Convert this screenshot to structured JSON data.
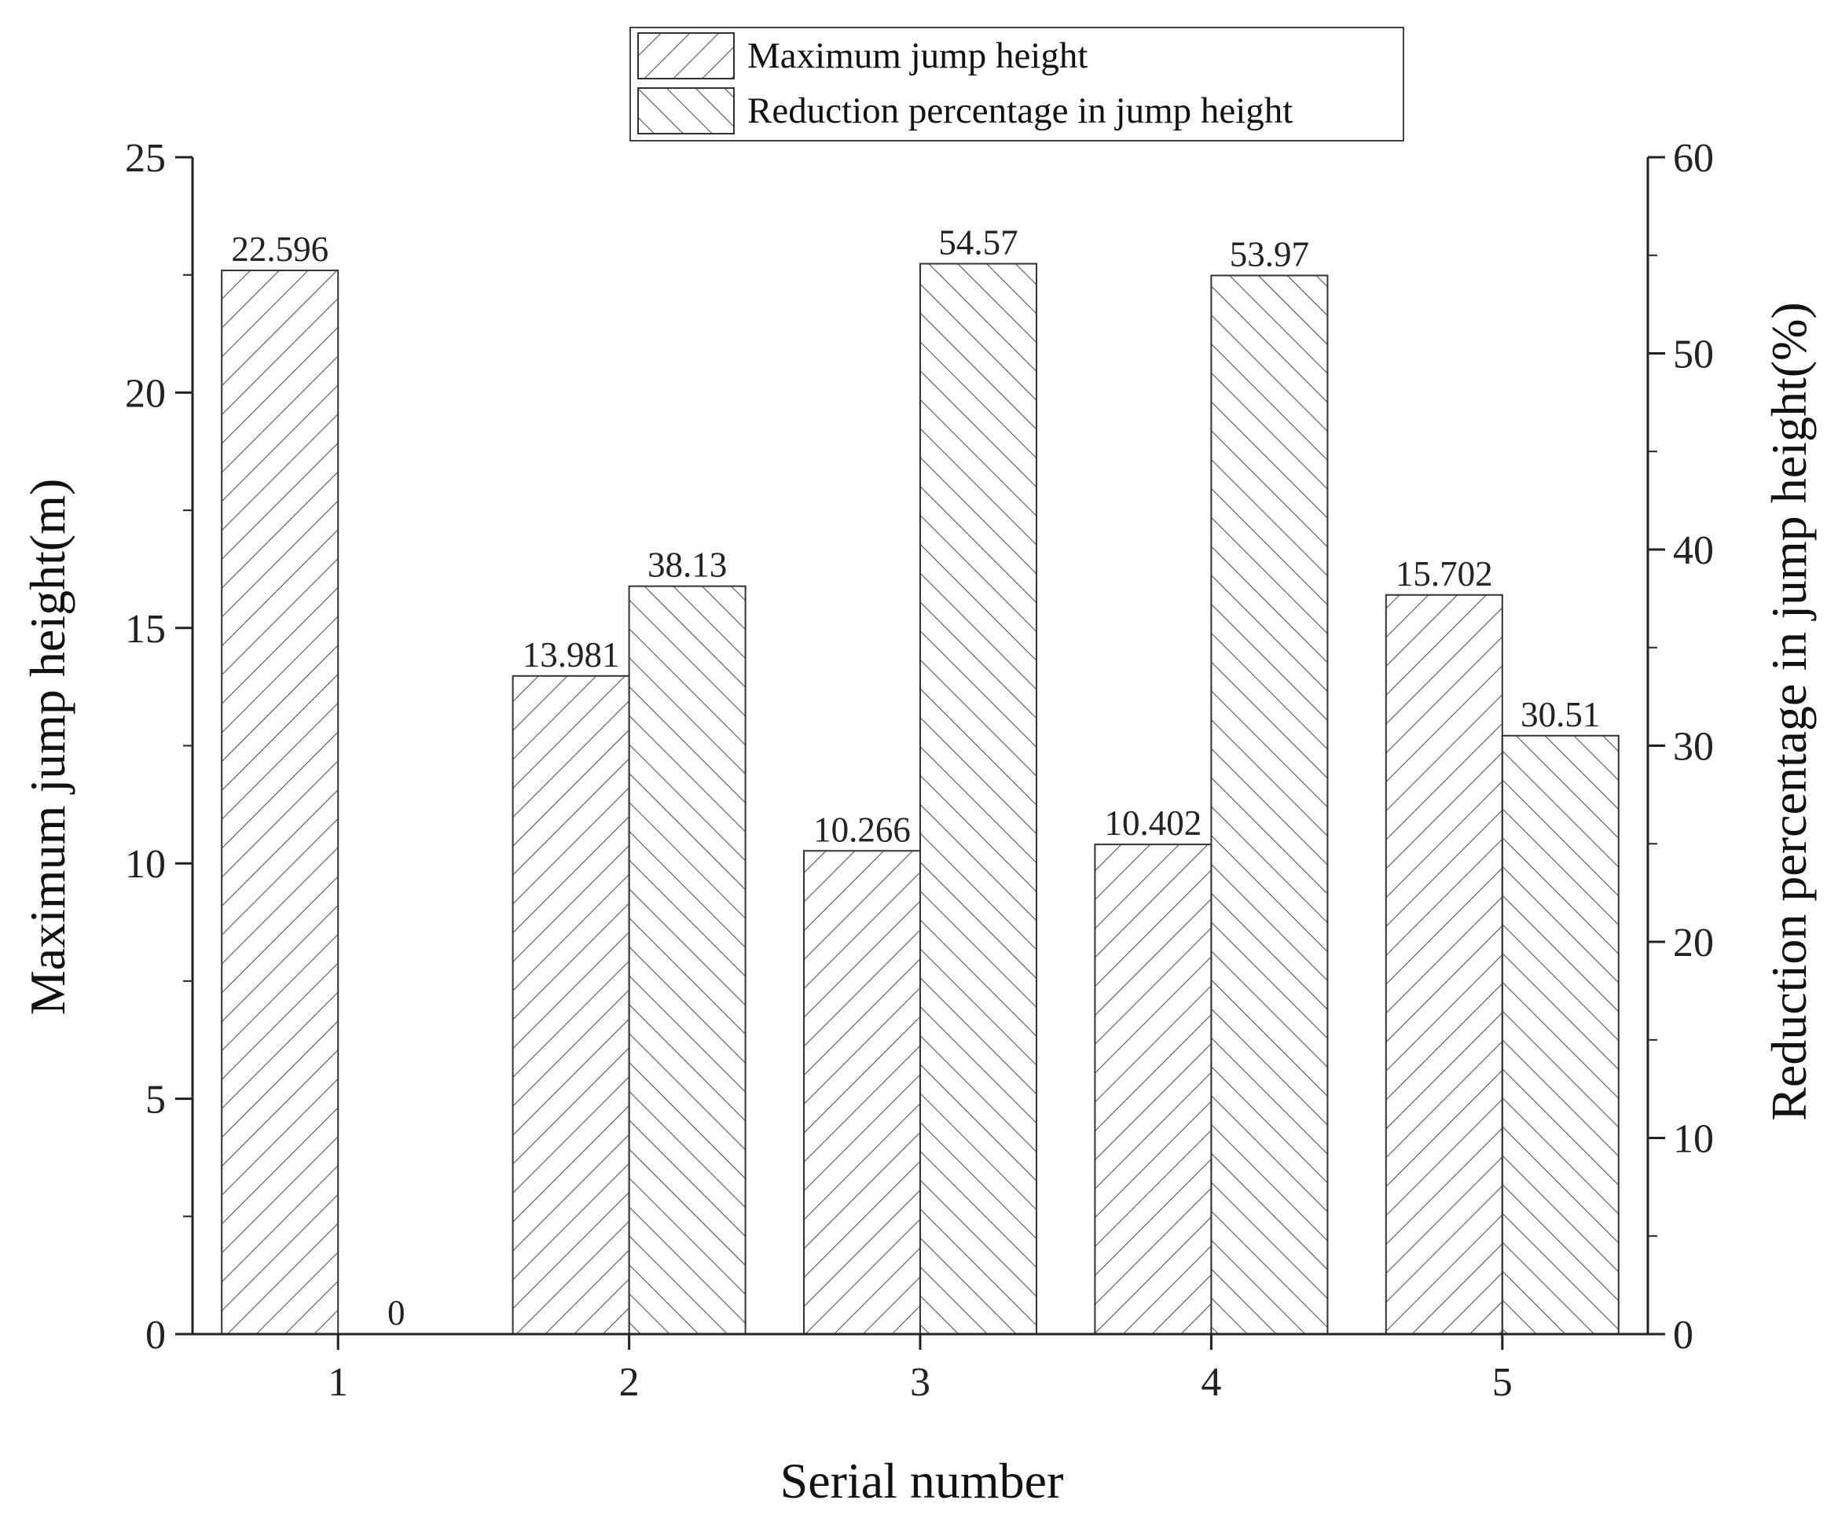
{
  "chart_data": {
    "type": "bar",
    "categories": [
      "1",
      "2",
      "3",
      "4",
      "5"
    ],
    "xlabel": "Serial number",
    "ylabel": "Maximum jump height(m)",
    "ylabel_right": "Reduction percentage in jump height(%)",
    "ylim": [
      0,
      25
    ],
    "ylim_right": [
      0,
      60
    ],
    "yticks": [
      "0",
      "5",
      "10",
      "15",
      "20",
      "25"
    ],
    "yticks_right": [
      "0",
      "10",
      "20",
      "30",
      "40",
      "50",
      "60"
    ],
    "legend_position": "top-center",
    "grid": false,
    "series": [
      {
        "name": "Maximum jump height",
        "axis": "left",
        "hatch": "forward-diagonal",
        "values": [
          22.596,
          13.981,
          10.266,
          10.402,
          15.702
        ],
        "labels": [
          "22.596",
          "13.981",
          "10.266",
          "10.402",
          "15.702"
        ]
      },
      {
        "name": "Reduction percentage in jump height",
        "axis": "right",
        "hatch": "back-diagonal",
        "values": [
          0,
          38.13,
          54.57,
          53.97,
          30.51
        ],
        "labels": [
          "0",
          "38.13",
          "54.57",
          "53.97",
          "30.51"
        ]
      }
    ],
    "colors": {
      "bar_fill": "#ffffff",
      "stroke": "#333333",
      "hatch": "#555555",
      "axis": "#222222"
    }
  }
}
